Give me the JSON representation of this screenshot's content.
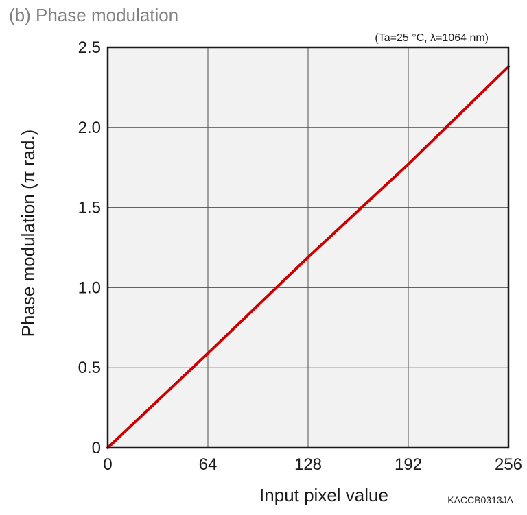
{
  "colors": {
    "plot_background": "#f2f2f2",
    "series_color": "#cc0000",
    "title_color": "#808080"
  },
  "chart_data": {
    "type": "line",
    "title": "(b) Phase modulation",
    "subtitle": "(Ta=25 °C, λ=1064 nm)",
    "xlabel": "Input pixel value",
    "ylabel": "Phase modulation (π rad.)",
    "figure_code": "KACCB0313JA",
    "xlim": [
      0,
      256
    ],
    "ylim": [
      0,
      2.5
    ],
    "x_ticks": [
      {
        "value": 0,
        "label": "0"
      },
      {
        "value": 64,
        "label": "64"
      },
      {
        "value": 128,
        "label": "128"
      },
      {
        "value": 192,
        "label": "192"
      },
      {
        "value": 256,
        "label": "256"
      }
    ],
    "y_ticks": [
      {
        "value": 0,
        "label": "0"
      },
      {
        "value": 0.5,
        "label": "0.5"
      },
      {
        "value": 1.0,
        "label": "1.0"
      },
      {
        "value": 1.5,
        "label": "1.5"
      },
      {
        "value": 2.0,
        "label": "2.0"
      },
      {
        "value": 2.5,
        "label": "2.5"
      }
    ],
    "grid": true,
    "legend": "none",
    "series": [
      {
        "x": [
          0,
          64,
          128,
          192,
          256
        ],
        "y": [
          0,
          0.59,
          1.19,
          1.77,
          2.38
        ]
      }
    ]
  }
}
